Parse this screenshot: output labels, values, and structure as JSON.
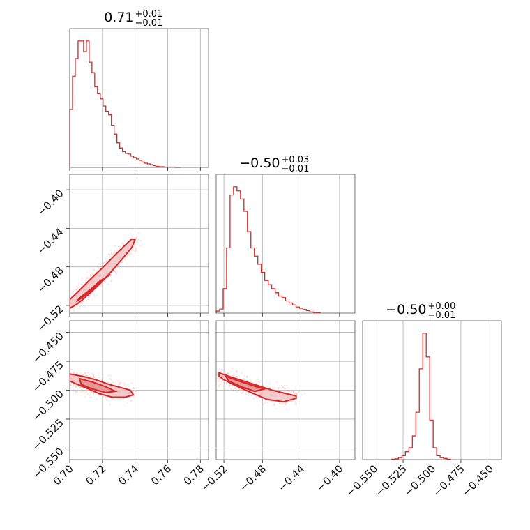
{
  "colors": {
    "accent": "#d62728",
    "fill_light": "#f3c4c5",
    "fill_dark": "#e58e90"
  },
  "chart_data": [
    {
      "type": "histogram",
      "parameter_index": 0,
      "title_value": "0.71",
      "title_upper": "+0.01",
      "title_lower": "−0.01",
      "xlim": [
        0.7,
        0.785
      ],
      "xticks": [
        "0.70",
        "0.72",
        "0.74",
        "0.76",
        "0.78"
      ],
      "bin_edges_start": 0.7,
      "bin_width": 0.0017,
      "counts": [
        165,
        260,
        310,
        360,
        360,
        330,
        360,
        300,
        270,
        230,
        210,
        195,
        175,
        160,
        150,
        120,
        95,
        70,
        55,
        45,
        40,
        38,
        32,
        28,
        24,
        20,
        15,
        12,
        10,
        8,
        5,
        3,
        2,
        2,
        1,
        1,
        1,
        1,
        0,
        0
      ]
    },
    {
      "type": "histogram",
      "parameter_index": 1,
      "title_value": "−0.50",
      "title_upper": "+0.03",
      "title_lower": "−0.01",
      "xlim": [
        -0.528,
        -0.384
      ],
      "xticks": [
        "−0.52",
        "−0.48",
        "−0.44",
        "−0.40"
      ],
      "bin_edges_start": -0.528,
      "bin_width": 0.0036,
      "counts": [
        5,
        10,
        60,
        160,
        290,
        310,
        300,
        280,
        250,
        200,
        160,
        140,
        120,
        100,
        80,
        70,
        60,
        50,
        42,
        38,
        30,
        25,
        20,
        15,
        12,
        9,
        6,
        3,
        2,
        1
      ]
    },
    {
      "type": "histogram",
      "parameter_index": 2,
      "title_value": "−0.50",
      "title_upper": "+0.00",
      "title_lower": "−0.01",
      "xlim": [
        -0.56,
        -0.44
      ],
      "xticks": [
        "−0.550",
        "−0.525",
        "−0.500",
        "−0.475",
        "−0.450"
      ],
      "bin_edges_start": -0.535,
      "bin_width": 0.003,
      "counts": [
        1,
        2,
        5,
        10,
        20,
        30,
        60,
        120,
        230,
        320,
        260,
        100,
        30,
        10,
        5,
        3,
        1
      ]
    },
    {
      "type": "scatter",
      "x_param": 0,
      "y_param": 1,
      "xlim": [
        0.7,
        0.785
      ],
      "ylim": [
        -0.528,
        -0.384
      ],
      "yticks": [
        "−0.52",
        "−0.48",
        "−0.44",
        "−0.40"
      ],
      "relation": "y = -0.518 + 2.1*(x - 0.70)",
      "contours": [
        {
          "level": "outer",
          "points": [
            [
              0.7,
              -0.523
            ],
            [
              0.705,
              -0.518
            ],
            [
              0.712,
              -0.508
            ],
            [
              0.72,
              -0.495
            ],
            [
              0.727,
              -0.482
            ],
            [
              0.733,
              -0.47
            ],
            [
              0.738,
              -0.46
            ],
            [
              0.74,
              -0.452
            ],
            [
              0.738,
              -0.451
            ],
            [
              0.733,
              -0.459
            ],
            [
              0.727,
              -0.469
            ],
            [
              0.72,
              -0.481
            ],
            [
              0.712,
              -0.494
            ],
            [
              0.705,
              -0.506
            ],
            [
              0.7,
              -0.514
            ]
          ]
        },
        {
          "level": "inner",
          "points": [
            [
              0.704,
              -0.516
            ],
            [
              0.71,
              -0.509
            ],
            [
              0.716,
              -0.5
            ],
            [
              0.722,
              -0.491
            ],
            [
              0.725,
              -0.488
            ],
            [
              0.719,
              -0.494
            ],
            [
              0.713,
              -0.503
            ],
            [
              0.707,
              -0.511
            ]
          ]
        }
      ]
    },
    {
      "type": "scatter",
      "x_param": 0,
      "y_param": 2,
      "xlim": [
        0.7,
        0.785
      ],
      "ylim": [
        -0.56,
        -0.44
      ],
      "yticks": [
        "−0.450",
        "−0.475",
        "−0.500",
        "−0.525",
        "−0.550"
      ],
      "relation": "y ≈ -0.491 - 0.35*(x - 0.70)",
      "contours": [
        {
          "level": "outer",
          "points": [
            [
              0.7,
              -0.486
            ],
            [
              0.708,
              -0.488
            ],
            [
              0.716,
              -0.491
            ],
            [
              0.724,
              -0.495
            ],
            [
              0.732,
              -0.498
            ],
            [
              0.737,
              -0.5
            ],
            [
              0.739,
              -0.504
            ],
            [
              0.734,
              -0.506
            ],
            [
              0.726,
              -0.506
            ],
            [
              0.718,
              -0.503
            ],
            [
              0.71,
              -0.498
            ],
            [
              0.703,
              -0.494
            ],
            [
              0.7,
              -0.492
            ]
          ]
        },
        {
          "level": "inner",
          "points": [
            [
              0.706,
              -0.49
            ],
            [
              0.714,
              -0.493
            ],
            [
              0.722,
              -0.497
            ],
            [
              0.728,
              -0.501
            ],
            [
              0.722,
              -0.502
            ],
            [
              0.714,
              -0.499
            ],
            [
              0.707,
              -0.495
            ]
          ]
        }
      ]
    },
    {
      "type": "scatter",
      "x_param": 1,
      "y_param": 2,
      "xlim": [
        -0.528,
        -0.384
      ],
      "ylim": [
        -0.56,
        -0.44
      ],
      "relation": "y ≈ -0.5 - 0.33*(x + 0.515)",
      "contours": [
        {
          "level": "outer",
          "points": [
            [
              -0.525,
              -0.485
            ],
            [
              -0.515,
              -0.488
            ],
            [
              -0.5,
              -0.492
            ],
            [
              -0.485,
              -0.496
            ],
            [
              -0.47,
              -0.5
            ],
            [
              -0.455,
              -0.503
            ],
            [
              -0.445,
              -0.505
            ],
            [
              -0.445,
              -0.507
            ],
            [
              -0.458,
              -0.51
            ],
            [
              -0.475,
              -0.508
            ],
            [
              -0.492,
              -0.502
            ],
            [
              -0.508,
              -0.496
            ],
            [
              -0.52,
              -0.491
            ],
            [
              -0.525,
              -0.488
            ]
          ]
        },
        {
          "level": "inner",
          "points": [
            [
              -0.518,
              -0.488
            ],
            [
              -0.505,
              -0.492
            ],
            [
              -0.49,
              -0.496
            ],
            [
              -0.478,
              -0.499
            ],
            [
              -0.488,
              -0.501
            ],
            [
              -0.502,
              -0.497
            ],
            [
              -0.515,
              -0.492
            ]
          ]
        }
      ]
    }
  ]
}
